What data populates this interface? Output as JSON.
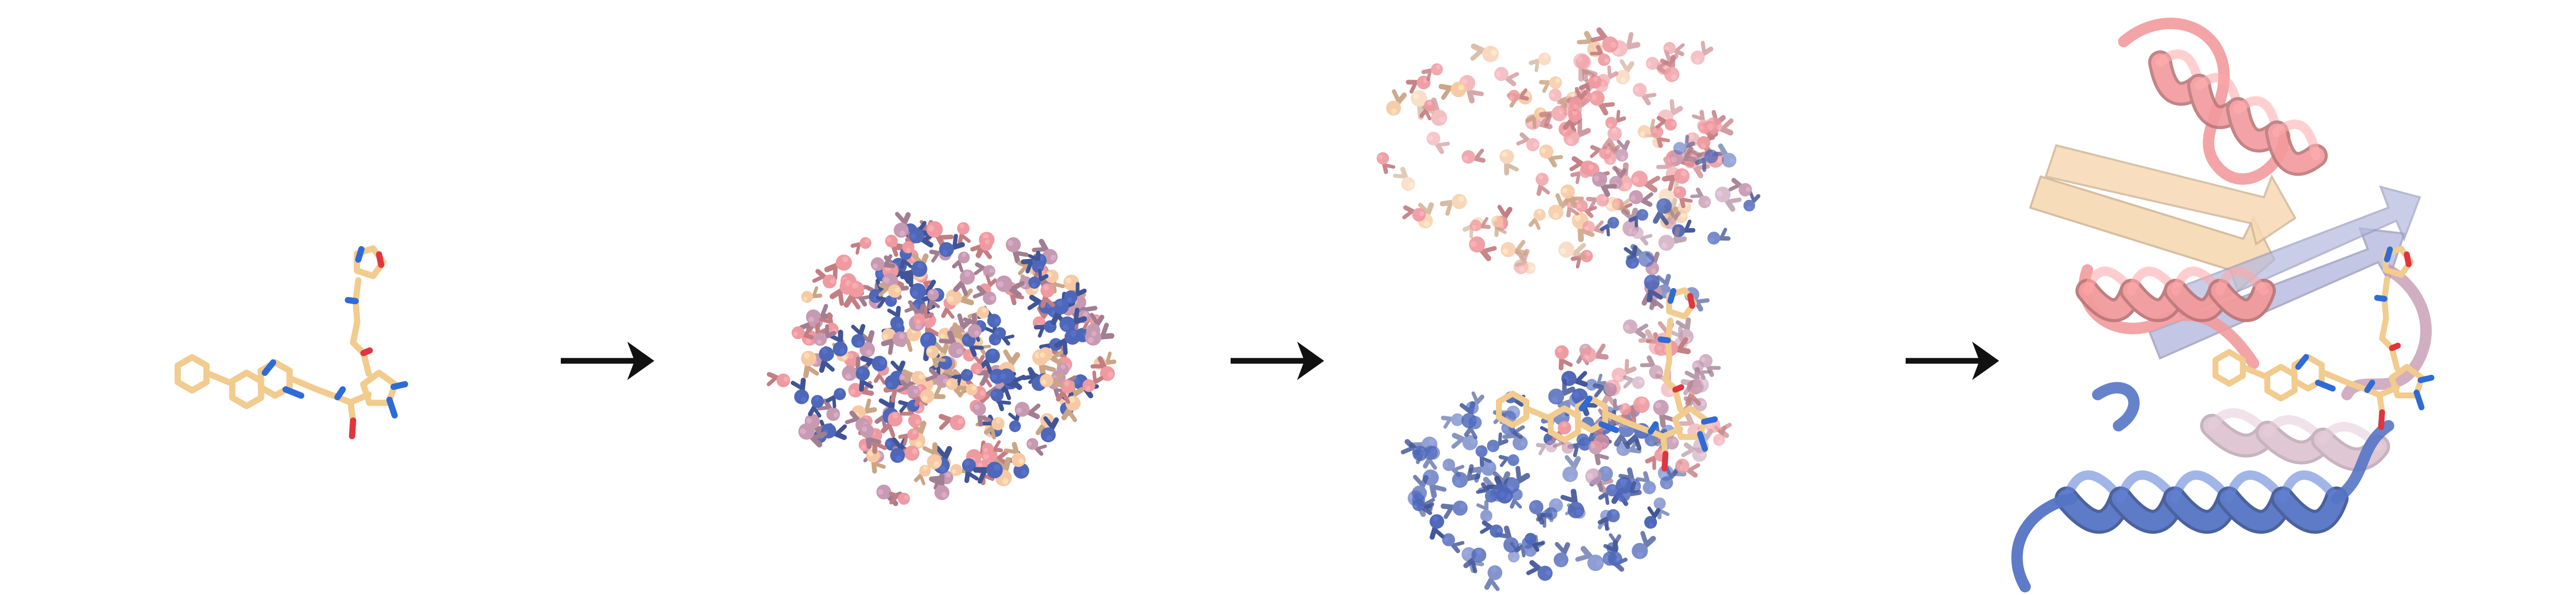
{
  "figure": {
    "panels": [
      {
        "id": "ligand",
        "description_icon": "ligand-molecule"
      },
      {
        "id": "noise",
        "description_icon": "random-residue-cloud"
      },
      {
        "id": "partial",
        "description_icon": "partially-denoised-residues"
      },
      {
        "id": "structure",
        "description_icon": "protein-ligand-complex"
      }
    ],
    "arrow_count": 3
  },
  "colors": {
    "ligand_carbon": "#F2CB8E",
    "ligand_nitrogen": "#2F6BD6",
    "ligand_oxygen": "#E0353F",
    "residue_pink": "#EE9AA0",
    "residue_peach": "#F6C9A4",
    "residue_blue": "#4E67B8",
    "residue_mauve": "#C69AB2",
    "helix_salmon": "#F29A9C",
    "helix_blue": "#5574C4",
    "sheet_peach": "#F7D9B3",
    "sheet_lavender": "#B5B9DE",
    "arrow": "#111111"
  }
}
